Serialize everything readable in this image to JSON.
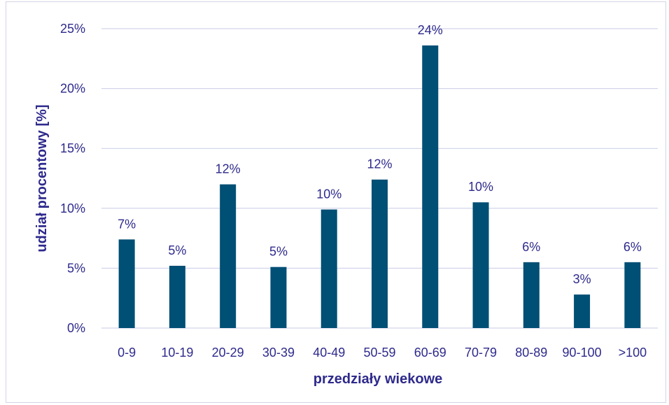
{
  "chart_data": {
    "type": "bar",
    "title": "",
    "xlabel": "przedziały wiekowe",
    "ylabel": "udział procentowy [%]",
    "categories": [
      "0-9",
      "10-19",
      "20-29",
      "30-39",
      "40-49",
      "50-59",
      "60-69",
      "70-79",
      "80-89",
      "90-100",
      ">100"
    ],
    "values": [
      7.4,
      5.2,
      12.0,
      5.1,
      9.9,
      12.4,
      23.6,
      10.5,
      5.5,
      2.8,
      5.5
    ],
    "data_labels": [
      "7%",
      "5%",
      "12%",
      "5%",
      "10%",
      "12%",
      "24%",
      "10%",
      "6%",
      "3%",
      "6%"
    ],
    "ylim": [
      0,
      25
    ],
    "yticks": [
      0,
      5,
      10,
      15,
      20,
      25
    ],
    "ytick_labels": [
      "0%",
      "5%",
      "10%",
      "15%",
      "20%",
      "25%"
    ],
    "grid": true,
    "legend": "none",
    "colors": {
      "bar": "#004f75",
      "grid": "#c9cbe6",
      "text": "#2e2a8c"
    }
  }
}
